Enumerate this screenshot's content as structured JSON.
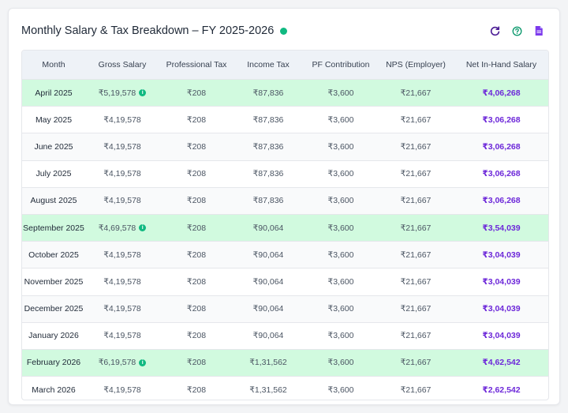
{
  "title": "Monthly Salary & Tax Breakdown – FY 2025-2026",
  "colors": {
    "accent": "#10b981",
    "net": "#6d28d9",
    "highlight": "#d1fadf",
    "header_bg": "#eef2f7"
  },
  "actions": {
    "refresh_icon": "refresh-icon",
    "help_icon": "help-icon",
    "document_icon": "document-icon"
  },
  "columns": [
    "Month",
    "Gross Salary",
    "Professional Tax",
    "Income Tax",
    "PF Contribution",
    "NPS (Employer)",
    "Net In-Hand Salary"
  ],
  "rows": [
    {
      "month": "April 2025",
      "gross": "₹5,19,578",
      "pt": "₹208",
      "it": "₹87,836",
      "pf": "₹3,600",
      "nps": "₹21,667",
      "net": "₹4,06,268",
      "highlight": true
    },
    {
      "month": "May 2025",
      "gross": "₹4,19,578",
      "pt": "₹208",
      "it": "₹87,836",
      "pf": "₹3,600",
      "nps": "₹21,667",
      "net": "₹3,06,268",
      "highlight": false
    },
    {
      "month": "June 2025",
      "gross": "₹4,19,578",
      "pt": "₹208",
      "it": "₹87,836",
      "pf": "₹3,600",
      "nps": "₹21,667",
      "net": "₹3,06,268",
      "highlight": false
    },
    {
      "month": "July 2025",
      "gross": "₹4,19,578",
      "pt": "₹208",
      "it": "₹87,836",
      "pf": "₹3,600",
      "nps": "₹21,667",
      "net": "₹3,06,268",
      "highlight": false
    },
    {
      "month": "August 2025",
      "gross": "₹4,19,578",
      "pt": "₹208",
      "it": "₹87,836",
      "pf": "₹3,600",
      "nps": "₹21,667",
      "net": "₹3,06,268",
      "highlight": false
    },
    {
      "month": "September 2025",
      "gross": "₹4,69,578",
      "pt": "₹208",
      "it": "₹90,064",
      "pf": "₹3,600",
      "nps": "₹21,667",
      "net": "₹3,54,039",
      "highlight": true
    },
    {
      "month": "October 2025",
      "gross": "₹4,19,578",
      "pt": "₹208",
      "it": "₹90,064",
      "pf": "₹3,600",
      "nps": "₹21,667",
      "net": "₹3,04,039",
      "highlight": false
    },
    {
      "month": "November 2025",
      "gross": "₹4,19,578",
      "pt": "₹208",
      "it": "₹90,064",
      "pf": "₹3,600",
      "nps": "₹21,667",
      "net": "₹3,04,039",
      "highlight": false
    },
    {
      "month": "December 2025",
      "gross": "₹4,19,578",
      "pt": "₹208",
      "it": "₹90,064",
      "pf": "₹3,600",
      "nps": "₹21,667",
      "net": "₹3,04,039",
      "highlight": false
    },
    {
      "month": "January 2026",
      "gross": "₹4,19,578",
      "pt": "₹208",
      "it": "₹90,064",
      "pf": "₹3,600",
      "nps": "₹21,667",
      "net": "₹3,04,039",
      "highlight": false
    },
    {
      "month": "February 2026",
      "gross": "₹6,19,578",
      "pt": "₹208",
      "it": "₹1,31,562",
      "pf": "₹3,600",
      "nps": "₹21,667",
      "net": "₹4,62,542",
      "highlight": true
    },
    {
      "month": "March 2026",
      "gross": "₹4,19,578",
      "pt": "₹208",
      "it": "₹1,31,562",
      "pf": "₹3,600",
      "nps": "₹21,667",
      "net": "₹2,62,542",
      "highlight": false
    }
  ]
}
